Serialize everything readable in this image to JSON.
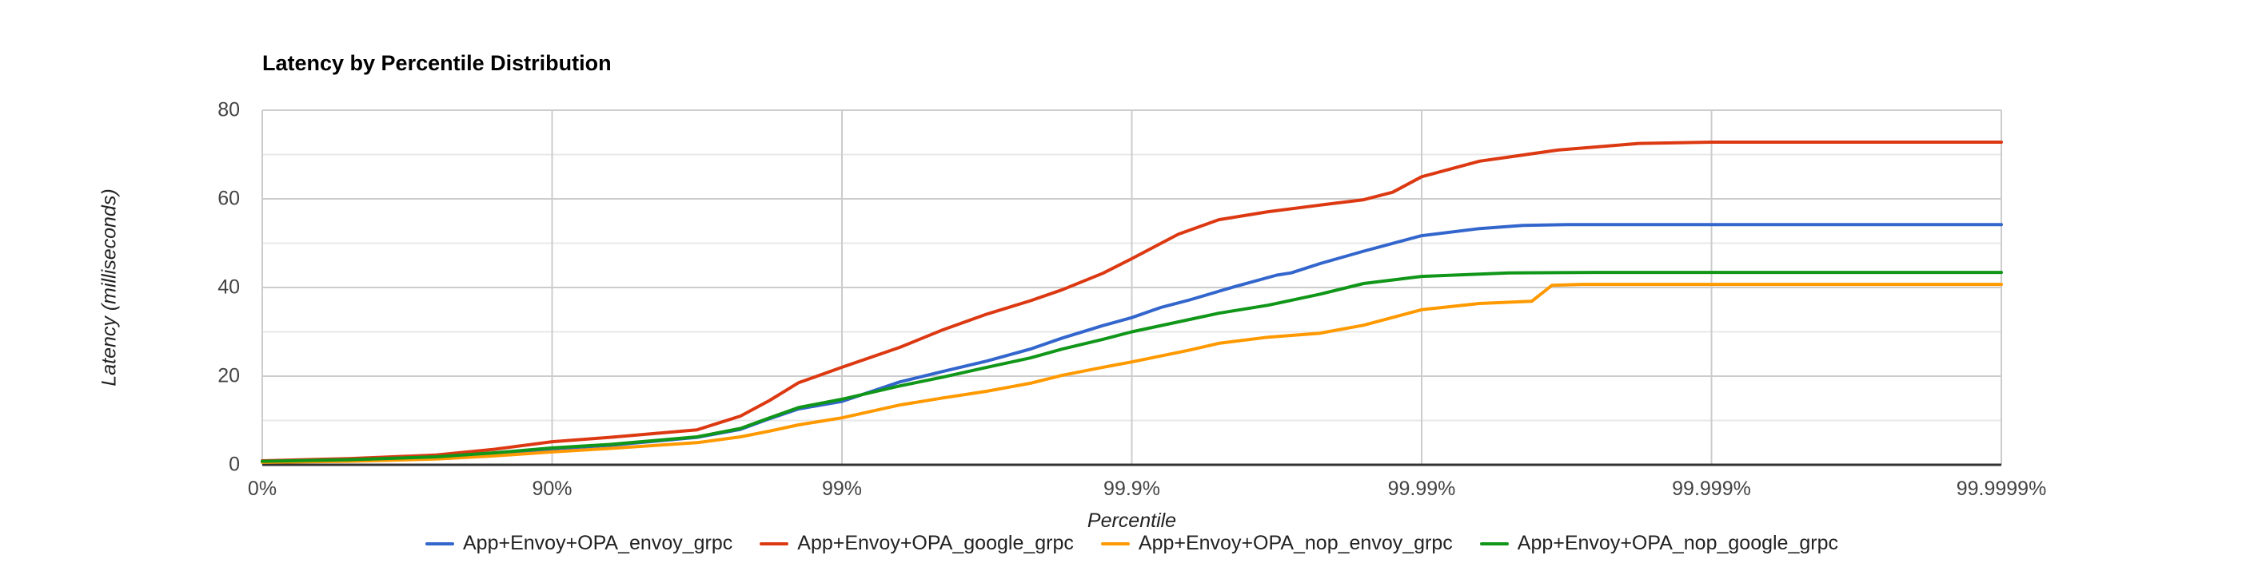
{
  "title": "Latency by Percentile Distribution",
  "x_axis": {
    "title": "Percentile",
    "scale": "percentile log (number of nines)",
    "ticks": [
      {
        "label": "0%",
        "nines": 0
      },
      {
        "label": "90%",
        "nines": 1
      },
      {
        "label": "99%",
        "nines": 2
      },
      {
        "label": "99.9%",
        "nines": 3
      },
      {
        "label": "99.99%",
        "nines": 4
      },
      {
        "label": "99.999%",
        "nines": 5
      },
      {
        "label": "99.9999%",
        "nines": 6
      }
    ]
  },
  "y_axis": {
    "title": "Latency (milliseconds)",
    "min": 0,
    "max": 80,
    "major_ticks": [
      0,
      20,
      40,
      60,
      80
    ],
    "minor_gridlines": [
      10,
      30,
      50,
      70
    ]
  },
  "colors": {
    "grid_major": "#cccccc",
    "grid_minor": "#e8e8e8",
    "axis_baseline": "#333333",
    "text": "#444444"
  },
  "chart_data": {
    "type": "line",
    "title": "Latency by Percentile Distribution",
    "xlabel": "Percentile",
    "ylabel": "Latency (milliseconds)",
    "ylim": [
      0,
      80
    ],
    "x_unit": "nines (-log10(1-p)), ticks evenly spaced",
    "grid": true,
    "legend_position": "bottom",
    "values_at_ticks_ms": {
      "percentiles": [
        "0%",
        "90%",
        "99%",
        "99.9%",
        "99.99%",
        "99.999%",
        "99.9999%"
      ],
      "App+Envoy+OPA_envoy_grpc": [
        0.8,
        3.6,
        14.3,
        33.2,
        51.7,
        54.2,
        54.2
      ],
      "App+Envoy+OPA_google_grpc": [
        0.9,
        5.2,
        22.0,
        46.5,
        65.0,
        72.8,
        72.8
      ],
      "App+Envoy+OPA_nop_envoy_grpc": [
        0.55,
        2.9,
        10.6,
        23.2,
        35.0,
        40.7,
        40.7
      ],
      "App+Envoy+OPA_nop_google_grpc": [
        0.8,
        3.8,
        14.8,
        30.0,
        42.5,
        43.4,
        43.4
      ]
    },
    "series": [
      {
        "name": "App+Envoy+OPA_envoy_grpc",
        "color": "#3366cc",
        "points": [
          [
            0,
            0.8
          ],
          [
            0.3,
            1.1
          ],
          [
            0.6,
            1.7
          ],
          [
            0.8,
            2.5
          ],
          [
            1,
            3.6
          ],
          [
            1.2,
            4.4
          ],
          [
            1.5,
            6.2
          ],
          [
            1.65,
            8.0
          ],
          [
            1.75,
            10.4
          ],
          [
            1.85,
            12.6
          ],
          [
            2,
            14.3
          ],
          [
            2.2,
            18.7
          ],
          [
            2.35,
            21.1
          ],
          [
            2.5,
            23.4
          ],
          [
            2.65,
            26.1
          ],
          [
            2.76,
            28.6
          ],
          [
            2.9,
            31.4
          ],
          [
            3,
            33.2
          ],
          [
            3.1,
            35.5
          ],
          [
            3.2,
            37.2
          ],
          [
            3.35,
            40.1
          ],
          [
            3.5,
            42.8
          ],
          [
            3.55,
            43.3
          ],
          [
            3.65,
            45.4
          ],
          [
            3.8,
            48.2
          ],
          [
            4,
            51.7
          ],
          [
            4.2,
            53.3
          ],
          [
            4.35,
            54.0
          ],
          [
            4.5,
            54.2
          ],
          [
            5,
            54.2
          ],
          [
            6,
            54.2
          ]
        ]
      },
      {
        "name": "App+Envoy+OPA_google_grpc",
        "color": "#dc3912",
        "points": [
          [
            0,
            0.9
          ],
          [
            0.3,
            1.4
          ],
          [
            0.6,
            2.2
          ],
          [
            0.8,
            3.5
          ],
          [
            1,
            5.2
          ],
          [
            1.2,
            6.2
          ],
          [
            1.5,
            7.9
          ],
          [
            1.65,
            11.0
          ],
          [
            1.75,
            14.5
          ],
          [
            1.85,
            18.5
          ],
          [
            2,
            22.0
          ],
          [
            2.2,
            26.5
          ],
          [
            2.35,
            30.5
          ],
          [
            2.5,
            34.0
          ],
          [
            2.65,
            37.0
          ],
          [
            2.76,
            39.5
          ],
          [
            2.9,
            43.2
          ],
          [
            3,
            46.5
          ],
          [
            3.16,
            52.0
          ],
          [
            3.3,
            55.3
          ],
          [
            3.47,
            57.1
          ],
          [
            3.65,
            58.6
          ],
          [
            3.8,
            59.8
          ],
          [
            3.9,
            61.5
          ],
          [
            4,
            65.0
          ],
          [
            4.2,
            68.5
          ],
          [
            4.47,
            71.0
          ],
          [
            4.75,
            72.5
          ],
          [
            5,
            72.8
          ],
          [
            6,
            72.8
          ]
        ]
      },
      {
        "name": "App+Envoy+OPA_nop_envoy_grpc",
        "color": "#ff9900",
        "points": [
          [
            0,
            0.55
          ],
          [
            0.3,
            0.8
          ],
          [
            0.6,
            1.3
          ],
          [
            0.8,
            2.0
          ],
          [
            1,
            2.9
          ],
          [
            1.2,
            3.7
          ],
          [
            1.5,
            5.0
          ],
          [
            1.65,
            6.3
          ],
          [
            1.75,
            7.6
          ],
          [
            1.85,
            9.0
          ],
          [
            2,
            10.6
          ],
          [
            2.2,
            13.5
          ],
          [
            2.35,
            15.1
          ],
          [
            2.5,
            16.6
          ],
          [
            2.65,
            18.4
          ],
          [
            2.76,
            20.2
          ],
          [
            2.9,
            22.0
          ],
          [
            3,
            23.2
          ],
          [
            3.2,
            25.9
          ],
          [
            3.3,
            27.4
          ],
          [
            3.47,
            28.8
          ],
          [
            3.65,
            29.7
          ],
          [
            3.8,
            31.5
          ],
          [
            4,
            35.0
          ],
          [
            4.2,
            36.4
          ],
          [
            4.38,
            36.9
          ],
          [
            4.45,
            40.5
          ],
          [
            4.55,
            40.7
          ],
          [
            5,
            40.7
          ],
          [
            6,
            40.7
          ]
        ]
      },
      {
        "name": "App+Envoy+OPA_nop_google_grpc",
        "color": "#109618",
        "points": [
          [
            0,
            0.8
          ],
          [
            0.3,
            1.15
          ],
          [
            0.6,
            1.8
          ],
          [
            0.8,
            2.7
          ],
          [
            1,
            3.8
          ],
          [
            1.2,
            4.6
          ],
          [
            1.5,
            6.3
          ],
          [
            1.65,
            8.2
          ],
          [
            1.75,
            10.6
          ],
          [
            1.85,
            12.9
          ],
          [
            2,
            14.8
          ],
          [
            2.2,
            17.8
          ],
          [
            2.35,
            19.8
          ],
          [
            2.5,
            22.0
          ],
          [
            2.65,
            24.1
          ],
          [
            2.76,
            26.1
          ],
          [
            2.9,
            28.3
          ],
          [
            3,
            30.0
          ],
          [
            3.2,
            32.8
          ],
          [
            3.3,
            34.2
          ],
          [
            3.47,
            36.0
          ],
          [
            3.65,
            38.5
          ],
          [
            3.8,
            40.9
          ],
          [
            4,
            42.5
          ],
          [
            4.3,
            43.3
          ],
          [
            4.6,
            43.4
          ],
          [
            5,
            43.4
          ],
          [
            6,
            43.4
          ]
        ]
      }
    ]
  }
}
